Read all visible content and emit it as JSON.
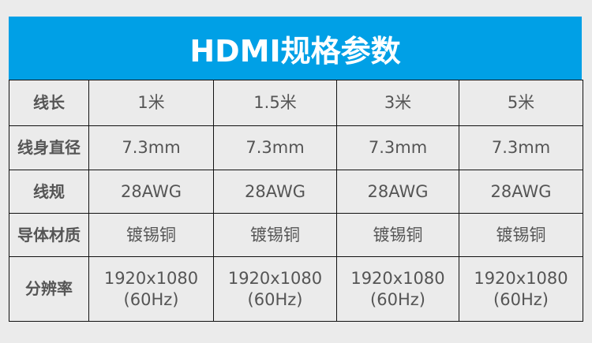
{
  "header": {
    "title": "HDMI规格参数"
  },
  "colors": {
    "header_bg": "#00a0e6",
    "page_bg": "#ebebeb"
  },
  "rows": [
    {
      "label": "线长",
      "values": [
        "1米",
        "1.5米",
        "3米",
        "5米"
      ]
    },
    {
      "label": "线身直径",
      "values": [
        "7.3mm",
        "7.3mm",
        "7.3mm",
        "7.3mm"
      ]
    },
    {
      "label": "线规",
      "values": [
        "28AWG",
        "28AWG",
        "28AWG",
        "28AWG"
      ]
    },
    {
      "label": "导体材质",
      "values": [
        "镀锡铜",
        "镀锡铜",
        "镀锡铜",
        "镀锡铜"
      ]
    },
    {
      "label": "分辨率",
      "values": [
        "1920x1080",
        "1920x1080",
        "1920x1080",
        "1920x1080"
      ],
      "sub": [
        "(60Hz)",
        "(60Hz)",
        "(60Hz)",
        "(60Hz)"
      ]
    }
  ]
}
